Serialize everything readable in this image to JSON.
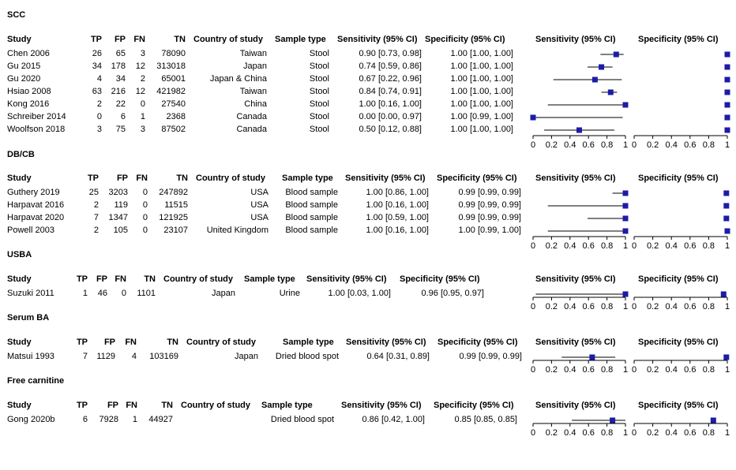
{
  "columns": {
    "study": "Study",
    "tp": "TP",
    "fp": "FP",
    "fn": "FN",
    "tn": "TN",
    "country": "Country of study",
    "sample": "Sample type",
    "sens": "Sensitivity (95% CI)",
    "spec": "Specificity (95% CI)"
  },
  "plot_headers": {
    "sens": "Sensitivity (95% CI)",
    "spec": "Specificity (95% CI)"
  },
  "tick_labels": [
    "0",
    "0.2",
    "0.4",
    "0.6",
    "0.8",
    "1"
  ],
  "marker_color": "#1c1ca8",
  "chart_data": {
    "type": "forest",
    "xlim": [
      0,
      1
    ],
    "ticks": [
      0,
      0.2,
      0.4,
      0.6,
      0.8,
      1
    ],
    "groups": [
      {
        "name": "SCC",
        "rows": [
          {
            "study": "Chen 2006",
            "tp": "26",
            "fp": "65",
            "fn": "3",
            "tn": "78090",
            "country": "Taiwan",
            "sample": "Stool",
            "sens_text": "0.90 [0.73, 0.98]",
            "spec_text": "1.00 [1.00, 1.00]",
            "sens": [
              0.9,
              0.73,
              0.98
            ],
            "spec": [
              1.0,
              1.0,
              1.0
            ]
          },
          {
            "study": "Gu 2015",
            "tp": "34",
            "fp": "178",
            "fn": "12",
            "tn": "313018",
            "country": "Japan",
            "sample": "Stool",
            "sens_text": "0.74 [0.59, 0.86]",
            "spec_text": "1.00 [1.00, 1.00]",
            "sens": [
              0.74,
              0.59,
              0.86
            ],
            "spec": [
              1.0,
              1.0,
              1.0
            ]
          },
          {
            "study": "Gu 2020",
            "tp": "4",
            "fp": "34",
            "fn": "2",
            "tn": "65001",
            "country": "Japan & China",
            "sample": "Stool",
            "sens_text": "0.67 [0.22, 0.96]",
            "spec_text": "1.00 [1.00, 1.00]",
            "sens": [
              0.67,
              0.22,
              0.96
            ],
            "spec": [
              1.0,
              1.0,
              1.0
            ]
          },
          {
            "study": "Hsiao 2008",
            "tp": "63",
            "fp": "216",
            "fn": "12",
            "tn": "421982",
            "country": "Taiwan",
            "sample": "Stool",
            "sens_text": "0.84 [0.74, 0.91]",
            "spec_text": "1.00 [1.00, 1.00]",
            "sens": [
              0.84,
              0.74,
              0.91
            ],
            "spec": [
              1.0,
              1.0,
              1.0
            ]
          },
          {
            "study": "Kong 2016",
            "tp": "2",
            "fp": "22",
            "fn": "0",
            "tn": "27540",
            "country": "China",
            "sample": "Stool",
            "sens_text": "1.00 [0.16, 1.00]",
            "spec_text": "1.00 [1.00, 1.00]",
            "sens": [
              1.0,
              0.16,
              1.0
            ],
            "spec": [
              1.0,
              1.0,
              1.0
            ]
          },
          {
            "study": "Schreiber 2014",
            "tp": "0",
            "fp": "6",
            "fn": "1",
            "tn": "2368",
            "country": "Canada",
            "sample": "Stool",
            "sens_text": "0.00 [0.00, 0.97]",
            "spec_text": "1.00 [0.99, 1.00]",
            "sens": [
              0.0,
              0.0,
              0.97
            ],
            "spec": [
              1.0,
              0.99,
              1.0
            ]
          },
          {
            "study": "Woolfson 2018",
            "tp": "3",
            "fp": "75",
            "fn": "3",
            "tn": "87502",
            "country": "Canada",
            "sample": "Stool",
            "sens_text": "0.50 [0.12, 0.88]",
            "spec_text": "1.00 [1.00, 1.00]",
            "sens": [
              0.5,
              0.12,
              0.88
            ],
            "spec": [
              1.0,
              1.0,
              1.0
            ]
          }
        ]
      },
      {
        "name": "DB/CB",
        "rows": [
          {
            "study": "Guthery 2019",
            "tp": "25",
            "fp": "3203",
            "fn": "0",
            "tn": "247892",
            "country": "USA",
            "sample": "Blood sample",
            "sens_text": "1.00 [0.86, 1.00]",
            "spec_text": "0.99 [0.99, 0.99]",
            "sens": [
              1.0,
              0.86,
              1.0
            ],
            "spec": [
              0.99,
              0.99,
              0.99
            ]
          },
          {
            "study": "Harpavat 2016",
            "tp": "2",
            "fp": "119",
            "fn": "0",
            "tn": "11515",
            "country": "USA",
            "sample": "Blood sample",
            "sens_text": "1.00 [0.16, 1.00]",
            "spec_text": "0.99 [0.99, 0.99]",
            "sens": [
              1.0,
              0.16,
              1.0
            ],
            "spec": [
              0.99,
              0.99,
              0.99
            ]
          },
          {
            "study": "Harpavat 2020",
            "tp": "7",
            "fp": "1347",
            "fn": "0",
            "tn": "121925",
            "country": "USA",
            "sample": "Blood sample",
            "sens_text": "1.00 [0.59, 1.00]",
            "spec_text": "0.99 [0.99, 0.99]",
            "sens": [
              1.0,
              0.59,
              1.0
            ],
            "spec": [
              0.99,
              0.99,
              0.99
            ]
          },
          {
            "study": "Powell 2003",
            "tp": "2",
            "fp": "105",
            "fn": "0",
            "tn": "23107",
            "country": "United Kingdom",
            "sample": "Blood sample",
            "sens_text": "1.00 [0.16, 1.00]",
            "spec_text": "1.00 [0.99, 1.00]",
            "sens": [
              1.0,
              0.16,
              1.0
            ],
            "spec": [
              1.0,
              0.99,
              1.0
            ]
          }
        ]
      },
      {
        "name": "USBA",
        "rows": [
          {
            "study": "Suzuki 2011",
            "tp": "1",
            "fp": "46",
            "fn": "0",
            "tn": "1101",
            "country": "Japan",
            "sample": "Urine",
            "sens_text": "1.00 [0.03, 1.00]",
            "spec_text": "0.96 [0.95, 0.97]",
            "sens": [
              1.0,
              0.03,
              1.0
            ],
            "spec": [
              0.96,
              0.95,
              0.97
            ]
          }
        ]
      },
      {
        "name": "Serum BA",
        "rows": [
          {
            "study": "Matsui 1993",
            "tp": "7",
            "fp": "1129",
            "fn": "4",
            "tn": "103169",
            "country": "Japan",
            "sample": "Dried blood spot",
            "sens_text": "0.64 [0.31, 0.89]",
            "spec_text": "0.99 [0.99, 0.99]",
            "sens": [
              0.64,
              0.31,
              0.89
            ],
            "spec": [
              0.99,
              0.99,
              0.99
            ]
          }
        ]
      },
      {
        "name": "Free carnitine",
        "rows": [
          {
            "study": "Gong 2020b",
            "tp": "6",
            "fp": "7928",
            "fn": "1",
            "tn": "44927",
            "country": "",
            "sample": "Dried blood spot",
            "sens_text": "0.86 [0.42, 1.00]",
            "spec_text": "0.85 [0.85, 0.85]",
            "sens": [
              0.86,
              0.42,
              1.0
            ],
            "spec": [
              0.85,
              0.85,
              0.85
            ]
          }
        ]
      }
    ]
  }
}
